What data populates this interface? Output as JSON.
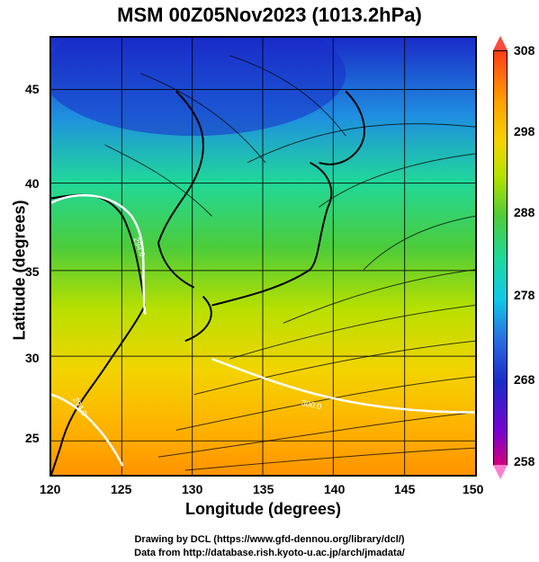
{
  "title": "MSM 00Z05Nov2023 (1013.2hPa)",
  "axes": {
    "xlabel": "Longitude (degrees)",
    "ylabel": "Latitude  (degrees)",
    "x_ticks": [
      "120",
      "125",
      "130",
      "135",
      "140",
      "145",
      "150"
    ],
    "y_ticks": [
      "45",
      "40",
      "35",
      "30",
      "25"
    ]
  },
  "colorbar": {
    "ticks": [
      "308",
      "298",
      "288",
      "278",
      "268",
      "258"
    ]
  },
  "contour_labels": [
    "294.0",
    "294.0",
    "300.0"
  ],
  "credits": {
    "line1": "Drawing by DCL (https://www.gfd-dennou.org/library/dcl/)",
    "line2": "Data from http://database.rish.kyoto-u.ac.jp/arch/jmadata/"
  },
  "colors": {
    "cold": "#1a2cc8",
    "mid": "#20d89a",
    "warm": "#f2d400",
    "hot": "#ff9f00",
    "contour": "#ffffff",
    "coast": "#000000"
  }
}
